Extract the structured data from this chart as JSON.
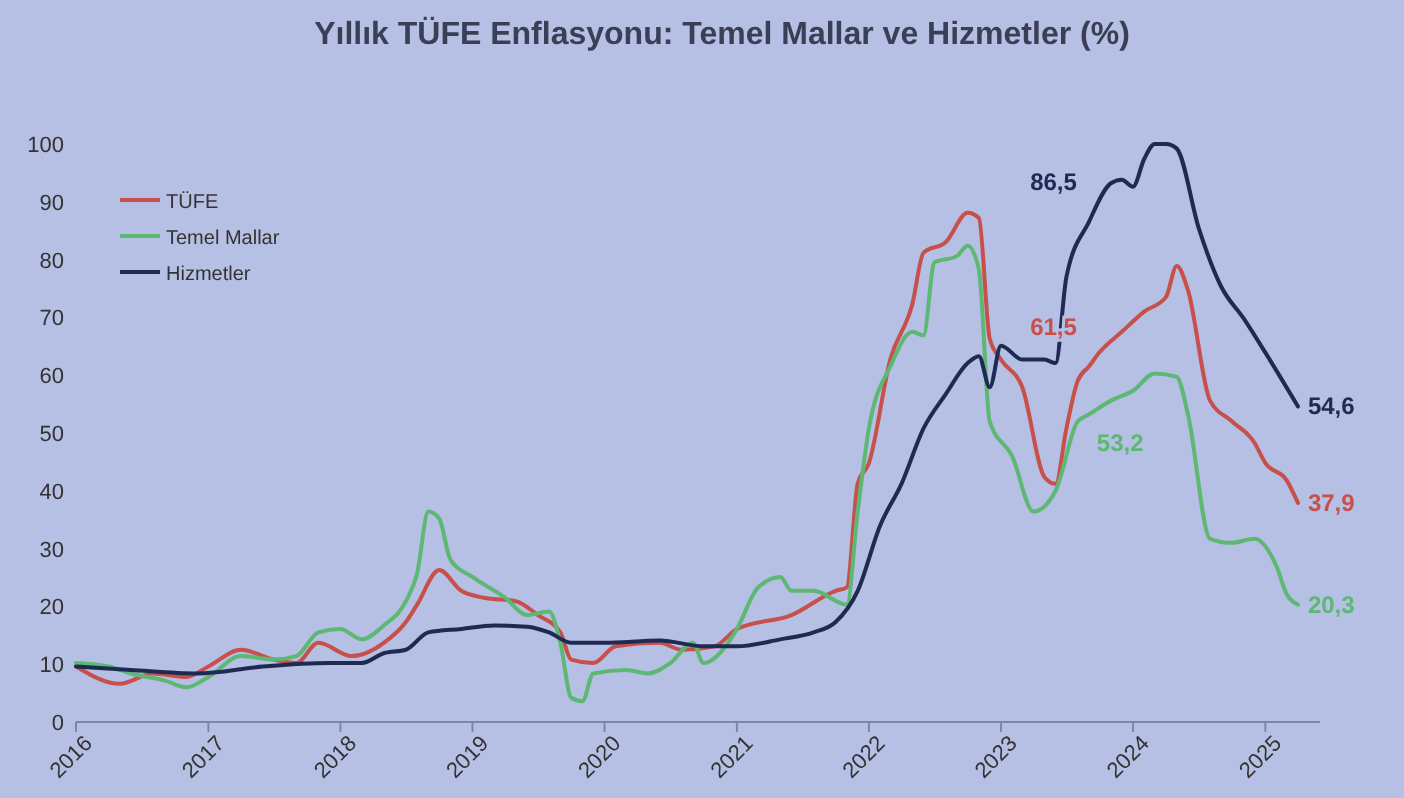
{
  "chart_data": {
    "type": "line",
    "title": "Yıllık TÜFE Enflasyonu: Temel Mallar ve Hizmetler (%)",
    "xlim": [
      "2016-01",
      "2025-06"
    ],
    "xticks": [
      {
        "value": "2016-01",
        "label": "2016"
      },
      {
        "value": "2017-01",
        "label": "2017"
      },
      {
        "value": "2018-01",
        "label": "2018"
      },
      {
        "value": "2019-01",
        "label": "2019"
      },
      {
        "value": "2020-01",
        "label": "2020"
      },
      {
        "value": "2021-01",
        "label": "2021"
      },
      {
        "value": "2022-01",
        "label": "2022"
      },
      {
        "value": "2023-01",
        "label": "2023"
      },
      {
        "value": "2024-01",
        "label": "2024"
      },
      {
        "value": "2025-01",
        "label": "2025"
      }
    ],
    "ylim": [
      0,
      100
    ],
    "yticks": [
      0,
      10,
      20,
      30,
      40,
      50,
      60,
      70,
      80,
      90,
      100
    ],
    "grid": false,
    "legend": "top left",
    "marker": "none",
    "line_style": "solid",
    "series": [
      {
        "name": "TÜFE",
        "color": "#c8504a",
        "x": [
          "2016-01",
          "2016-05",
          "2016-08",
          "2016-11",
          "2017-01",
          "2017-04",
          "2017-07",
          "2017-09",
          "2017-11",
          "2018-02",
          "2018-05",
          "2018-07",
          "2018-08",
          "2018-10",
          "2018-12",
          "2019-02",
          "2019-05",
          "2019-07",
          "2019-09",
          "2019-10",
          "2019-12",
          "2020-02",
          "2020-06",
          "2020-08",
          "2020-11",
          "2021-01",
          "2021-06",
          "2021-10",
          "2021-11",
          "2021-12",
          "2022-01",
          "2022-03",
          "2022-05",
          "2022-06",
          "2022-08",
          "2022-10",
          "2022-11",
          "2022-12",
          "2023-01",
          "2023-03",
          "2023-05",
          "2023-06",
          "2023-07",
          "2023-08",
          "2023-09",
          "2023-10",
          "2023-12",
          "2024-02",
          "2024-04",
          "2024-05",
          "2024-06",
          "2024-08",
          "2024-10",
          "2024-12",
          "2025-01",
          "2025-03",
          "2025-04"
        ],
        "values": [
          9.6,
          6.6,
          8.4,
          7.8,
          9.6,
          12.5,
          10.8,
          10.2,
          13.7,
          11.4,
          13.7,
          17.3,
          20.3,
          26.3,
          22.7,
          21.5,
          20.9,
          18.5,
          15.5,
          10.8,
          10.2,
          13.1,
          13.7,
          12.5,
          13.1,
          16.1,
          18.5,
          22.7,
          23.3,
          41.2,
          44.8,
          62.7,
          72.3,
          81.2,
          83,
          88.1,
          87.2,
          66.3,
          62.7,
          57.9,
          42.4,
          41.2,
          50.8,
          59,
          61.5,
          64,
          67.5,
          71,
          73.5,
          78.9,
          74.7,
          55.6,
          52,
          48.4,
          44.8,
          41.8,
          37.9
        ]
      },
      {
        "name": "Temel Mallar",
        "color": "#5cb872",
        "x": [
          "2016-01",
          "2016-04",
          "2016-06",
          "2016-09",
          "2016-11",
          "2017-01",
          "2017-04",
          "2017-07",
          "2017-09",
          "2017-11",
          "2018-01",
          "2018-03",
          "2018-05",
          "2018-07",
          "2018-08",
          "2018-09",
          "2018-10",
          "2018-11",
          "2019-01",
          "2019-04",
          "2019-06",
          "2019-08",
          "2019-09",
          "2019-10",
          "2019-11",
          "2019-12",
          "2020-03",
          "2020-05",
          "2020-07",
          "2020-09",
          "2020-10",
          "2020-12",
          "2021-01",
          "2021-03",
          "2021-05",
          "2021-06",
          "2021-08",
          "2021-11",
          "2021-12",
          "2022-01",
          "2022-03",
          "2022-05",
          "2022-06",
          "2022-07",
          "2022-09",
          "2022-10",
          "2022-11",
          "2022-12",
          "2023-02",
          "2023-04",
          "2023-06",
          "2023-08",
          "2023-09",
          "2023-11",
          "2024-01",
          "2024-03",
          "2024-05",
          "2024-06",
          "2024-08",
          "2024-10",
          "2024-12",
          "2025-02",
          "2025-03",
          "2025-04"
        ],
        "values": [
          10.2,
          9.6,
          8.4,
          7.2,
          6,
          7.8,
          11.4,
          10.8,
          11.4,
          15.5,
          16.1,
          14.3,
          16.7,
          20.9,
          25.7,
          36.4,
          35.2,
          28.1,
          25.1,
          21.5,
          18.5,
          19.1,
          13.7,
          4.2,
          3.6,
          8.4,
          9,
          8.4,
          10.2,
          13.7,
          10.2,
          13.1,
          16.1,
          23.3,
          25.1,
          22.7,
          22.7,
          20.3,
          36.4,
          50.8,
          61.5,
          67.5,
          66.9,
          79.5,
          80.6,
          82.4,
          78.3,
          52,
          46,
          36.4,
          40,
          52,
          53.2,
          55.6,
          57.3,
          60.3,
          59.7,
          53.2,
          31.7,
          31,
          31.7,
          26.9,
          22.1,
          20.3
        ]
      },
      {
        "name": "Hizmetler",
        "color": "#1f2a52",
        "x": [
          "2016-01",
          "2016-06",
          "2016-12",
          "2017-06",
          "2017-12",
          "2018-03",
          "2018-05",
          "2018-07",
          "2018-09",
          "2018-12",
          "2019-03",
          "2019-06",
          "2019-08",
          "2019-10",
          "2020-01",
          "2020-06",
          "2020-10",
          "2021-01",
          "2021-05",
          "2021-08",
          "2021-10",
          "2021-12",
          "2022-02",
          "2022-04",
          "2022-06",
          "2022-08",
          "2022-10",
          "2022-11",
          "2022-12",
          "2023-01",
          "2023-03",
          "2023-05",
          "2023-06",
          "2023-07",
          "2023-09",
          "2023-11",
          "2023-12",
          "2024-01",
          "2024-02",
          "2024-03",
          "2024-04",
          "2024-05",
          "2024-07",
          "2024-09",
          "2024-11",
          "2025-01",
          "2025-04"
        ],
        "values": [
          9.6,
          9,
          8.4,
          9.6,
          10.2,
          10.2,
          11.9,
          12.5,
          15.5,
          16.1,
          16.7,
          16.5,
          15.5,
          13.7,
          13.7,
          14.1,
          13.1,
          13.1,
          14.3,
          15.5,
          17.3,
          22.7,
          34,
          41.2,
          50.8,
          56.7,
          62.1,
          63.3,
          57.9,
          65.1,
          62.7,
          62.7,
          62.1,
          77,
          86.5,
          93.2,
          93.8,
          92.6,
          97.4,
          100,
          100,
          99.2,
          85.4,
          75.3,
          69.9,
          63.9,
          54.6
        ]
      }
    ],
    "annotations": [
      {
        "text": "86,5",
        "x": "2023-09",
        "y": 86.5
      },
      {
        "text": "61,5",
        "x": "2023-09",
        "y": 61.5
      },
      {
        "text": "53,2",
        "x": "2023-09",
        "y": 53.2
      },
      {
        "text": "54,6",
        "x": "2025-04",
        "y": 54.6
      },
      {
        "text": "37,9",
        "x": "2025-04",
        "y": 37.9
      },
      {
        "text": "20,3",
        "x": "2025-04",
        "y": 20.3
      }
    ]
  }
}
